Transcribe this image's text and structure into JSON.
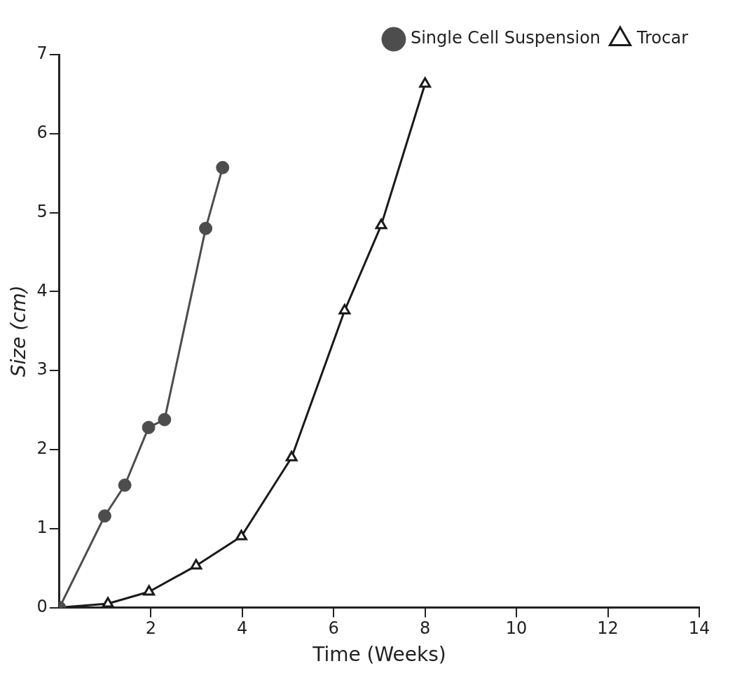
{
  "chart_data": {
    "type": "line",
    "xlabel": "Time (Weeks)",
    "ylabel": "Size (cm)",
    "xlim": [
      0,
      14
    ],
    "xticks": [
      2,
      4,
      6,
      8,
      10,
      12,
      14
    ],
    "ylim": [
      0,
      7
    ],
    "yticks": [
      0,
      1,
      2,
      3,
      4,
      5,
      6,
      7
    ],
    "grid": false,
    "legend": "top right",
    "line_style": "solid",
    "series": [
      {
        "name": "Single Cell Suspension",
        "color": "#4d4d4d",
        "marker": "circle",
        "x": [
          0,
          0.99,
          1.43,
          1.95,
          2.3,
          3.2,
          3.57
        ],
        "values": [
          0,
          1.16,
          1.55,
          2.28,
          2.38,
          4.8,
          5.57
        ]
      },
      {
        "name": "Trocar",
        "color": "#1a1a1a",
        "marker": "triangle",
        "x": [
          0,
          1.06,
          1.96,
          2.99,
          3.98,
          5.08,
          6.24,
          7.04,
          8.0
        ],
        "values": [
          0,
          0.05,
          0.2,
          0.53,
          0.9,
          1.9,
          3.76,
          4.84,
          6.63
        ]
      }
    ]
  }
}
